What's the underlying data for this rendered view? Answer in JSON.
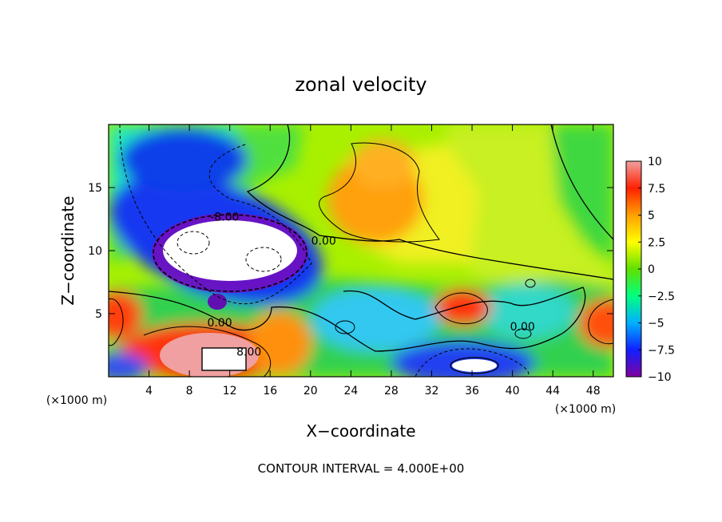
{
  "chart_data": {
    "type": "heatmap",
    "title": "zonal velocity",
    "xlabel": "X−coordinate",
    "ylabel": "Z−coordinate",
    "x_unit": "(×1000 m)",
    "y_unit": "(×1000 m)",
    "xlim": [
      0,
      50
    ],
    "ylim": [
      0,
      20
    ],
    "x_ticks": [
      4,
      8,
      12,
      16,
      20,
      24,
      28,
      32,
      36,
      40,
      44,
      48
    ],
    "x_tick_labels": [
      "4",
      "8",
      "12",
      "16",
      "20",
      "24",
      "28",
      "32",
      "36",
      "40",
      "44",
      "48"
    ],
    "y_ticks": [
      5,
      10,
      15
    ],
    "y_tick_labels": [
      "5",
      "10",
      "15"
    ],
    "colorbar": {
      "range": [
        -10,
        10
      ],
      "ticks": [
        10,
        7.5,
        5,
        2.5,
        0,
        -2.5,
        -5,
        -7.5,
        -10
      ],
      "tick_labels": [
        "10",
        "7.5",
        "5",
        "2.5",
        "0",
        "−2.5",
        "−5",
        "−7.5",
        "−10"
      ],
      "colors": [
        "#8000a0",
        "#1020ff",
        "#00b0ff",
        "#00ff80",
        "#60e000",
        "#ffff00",
        "#ffa000",
        "#ff2000",
        "#f0a0a0"
      ]
    },
    "contour_labels": [
      {
        "text": "-8.00",
        "x": 11.5,
        "y": 12.7
      },
      {
        "text": "0.00",
        "x": 21.3,
        "y": 10.8
      },
      {
        "text": "0.00",
        "x": 11.0,
        "y": 4.3
      },
      {
        "text": "8.00",
        "x": 13.9,
        "y": 2.0
      },
      {
        "text": "0.00",
        "x": 41.0,
        "y": 4.0
      }
    ],
    "footer": "CONTOUR INTERVAL = 4.000E+00"
  }
}
